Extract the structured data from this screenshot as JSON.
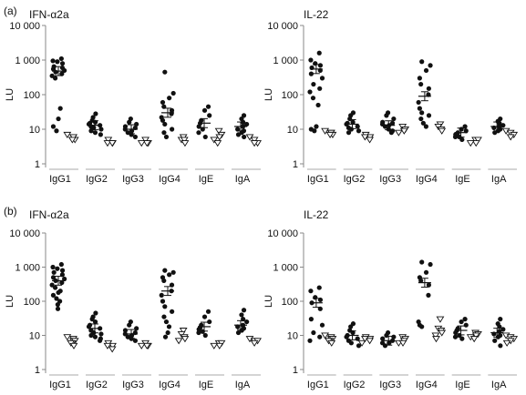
{
  "panel_labels": [
    "(a)",
    "(b)"
  ],
  "chart_data": [
    {
      "type": "scatter",
      "panel": "(a)",
      "title": "IFN-α2a",
      "xlabel": "",
      "ylabel": "LU",
      "yscale": "log",
      "ylim": [
        1,
        10000
      ],
      "yticks": [
        1,
        10,
        100,
        1000,
        10000
      ],
      "ytick_labels": [
        "1",
        "10",
        "100",
        "1 000",
        "10 000"
      ],
      "categories": [
        "IgG1",
        "IgG2",
        "IgG3",
        "IgG4",
        "IgE",
        "IgA"
      ],
      "series": [
        {
          "group": "filled-circle",
          "points": [
            [
              [
                1100,
                950,
                900,
                800,
                650,
                600,
                550,
                500,
                450,
                400,
                350,
                300,
                40.0,
                20.0,
                12.0,
                9.0
              ],
              [
                28,
                22,
                18,
                16,
                15,
                14,
                13,
                12,
                11,
                10,
                9,
                8,
                7
              ],
              [
                20,
                16,
                14,
                12,
                11,
                10,
                9,
                8,
                7,
                6
              ],
              [
                450,
                110,
                80,
                60,
                45,
                35,
                28,
                22,
                18,
                14,
                10,
                8,
                6
              ],
              [
                45,
                35,
                25,
                18,
                15,
                12,
                10,
                8,
                6
              ],
              [
                25,
                20,
                16,
                14,
                12,
                10,
                9,
                8,
                7,
                6
              ]
            ]
          ]
        },
        {
          "group": "open-triangle",
          "points": [
            [
              [
                7,
                6,
                6,
                5,
                5
              ],
              [
                5,
                4,
                4,
                4
              ],
              [
                5,
                4,
                4,
                4
              ],
              [
                6,
                5,
                5,
                4
              ],
              [
                9,
                7,
                6,
                5,
                4
              ],
              [
                6,
                5,
                4,
                4
              ]
            ]
          ]
        }
      ],
      "means": [
        480,
        13,
        10,
        30,
        15,
        12
      ]
    },
    {
      "type": "scatter",
      "panel": "(a)",
      "title": "IL-22",
      "xlabel": "",
      "ylabel": "LU",
      "yscale": "log",
      "ylim": [
        1,
        10000
      ],
      "yticks": [
        1,
        10,
        100,
        1000,
        10000
      ],
      "ytick_labels": [
        "1",
        "10",
        "100",
        "1 000",
        "10 000"
      ],
      "categories": [
        "IgG1",
        "IgG2",
        "IgG3",
        "IgG4",
        "IgE",
        "IgA"
      ],
      "series": [
        {
          "group": "filled-circle",
          "points": [
            [
              [
                1600,
                1000,
                800,
                700,
                600,
                500,
                400,
                300,
                200,
                150,
                120,
                80,
                50,
                12,
                10,
                9
              ],
              [
                30,
                25,
                20,
                16,
                15,
                14,
                12,
                11,
                10,
                9,
                8
              ],
              [
                30,
                25,
                20,
                16,
                15,
                14,
                13,
                12,
                10,
                9,
                8
              ],
              [
                900,
                700,
                500,
                300,
                200,
                150,
                100,
                60,
                40,
                30,
                25,
                20,
                15,
                12
              ],
              [
                12,
                10,
                9,
                8,
                7,
                7,
                6,
                6,
                5
              ],
              [
                20,
                17,
                15,
                13,
                12,
                11,
                10,
                9,
                8
              ]
            ]
          ]
        },
        {
          "group": "open-triangle",
          "points": [
            [
              [
                9,
                8,
                8,
                7,
                7
              ],
              [
                7,
                6,
                6,
                5
              ],
              [
                12,
                10,
                9,
                8
              ],
              [
                14,
                12,
                10,
                9
              ],
              [
                5,
                5,
                4,
                4
              ],
              [
                9,
                8,
                7,
                6
              ]
            ]
          ]
        }
      ],
      "means": [
        550,
        14,
        13,
        90,
        8,
        12
      ]
    },
    {
      "type": "scatter",
      "panel": "(b)",
      "title": "IFN-α2a",
      "xlabel": "",
      "ylabel": "LU",
      "yscale": "log",
      "ylim": [
        1,
        10000
      ],
      "yticks": [
        1,
        10,
        100,
        1000,
        10000
      ],
      "ytick_labels": [
        "1",
        "10",
        "100",
        "1 000",
        "10 000"
      ],
      "categories": [
        "IgG1",
        "IgG2",
        "IgG3",
        "IgG4",
        "IgE",
        "IgA"
      ],
      "series": [
        {
          "group": "filled-circle",
          "points": [
            [
              [
                1200,
                1000,
                900,
                800,
                700,
                600,
                500,
                450,
                400,
                350,
                300,
                250,
                200,
                180,
                150,
                120,
                100,
                80,
                60
              ],
              [
                45,
                35,
                30,
                25,
                20,
                18,
                16,
                14,
                12,
                11,
                10,
                9,
                8,
                7
              ],
              [
                25,
                20,
                16,
                14,
                12,
                11,
                10,
                9,
                8,
                7
              ],
              [
                800,
                700,
                600,
                500,
                400,
                300,
                200,
                150,
                100,
                70,
                50,
                35,
                25,
                18,
                12,
                9
              ],
              [
                50,
                35,
                25,
                20,
                17,
                15,
                13,
                12,
                10
              ],
              [
                55,
                40,
                30,
                25,
                20,
                18,
                16,
                14,
                12
              ]
            ]
          ]
        },
        {
          "group": "open-triangle",
          "points": [
            [
              [
                9,
                8,
                7,
                7,
                6,
                6,
                5
              ],
              [
                6,
                5,
                5,
                4
              ],
              [
                6,
                5,
                5,
                5
              ],
              [
                14,
                11,
                9,
                8,
                7
              ],
              [
                6,
                6,
                5,
                5
              ],
              [
                8,
                7,
                7,
                6
              ]
            ]
          ]
        }
      ],
      "means": [
        400,
        16,
        11,
        200,
        18,
        20
      ]
    },
    {
      "type": "scatter",
      "panel": "(b)",
      "title": "IL-22",
      "xlabel": "",
      "ylabel": "LU",
      "yscale": "log",
      "ylim": [
        1,
        10000
      ],
      "yticks": [
        1,
        10,
        100,
        1000,
        10000
      ],
      "ytick_labels": [
        "1",
        "10",
        "100",
        "1 000",
        "10 000"
      ],
      "categories": [
        "IgG1",
        "IgG2",
        "IgG3",
        "IgG4",
        "IgE",
        "IgA"
      ],
      "series": [
        {
          "group": "filled-circle",
          "points": [
            [
              [
                250,
                200,
                130,
                110,
                90,
                60,
                30,
                20,
                12,
                9,
                7
              ],
              [
                22,
                18,
                14,
                12,
                10,
                9,
                8,
                7,
                6,
                5
              ],
              [
                12,
                10,
                9,
                8,
                7,
                6,
                6,
                5
              ],
              [
                1400,
                1200,
                700,
                500,
                400,
                300,
                150,
                25,
                20,
                18
              ],
              [
                30,
                25,
                20,
                16,
                14,
                12,
                10,
                9,
                8
              ],
              [
                30,
                22,
                18,
                15,
                13,
                11,
                10,
                9,
                7,
                5
              ]
            ]
          ]
        },
        {
          "group": "open-triangle",
          "points": [
            [
              [
                10,
                9,
                8,
                8,
                7,
                7,
                6
              ],
              [
                9,
                8,
                8,
                7,
                6
              ],
              [
                9,
                8,
                7,
                6,
                6
              ],
              [
                30,
                16,
                14,
                12,
                10,
                8
              ],
              [
                12,
                11,
                10,
                9,
                8
              ],
              [
                10,
                9,
                8,
                7,
                6
              ]
            ]
          ]
        }
      ],
      "means": [
        90,
        10,
        7,
        350,
        14,
        12
      ]
    }
  ]
}
